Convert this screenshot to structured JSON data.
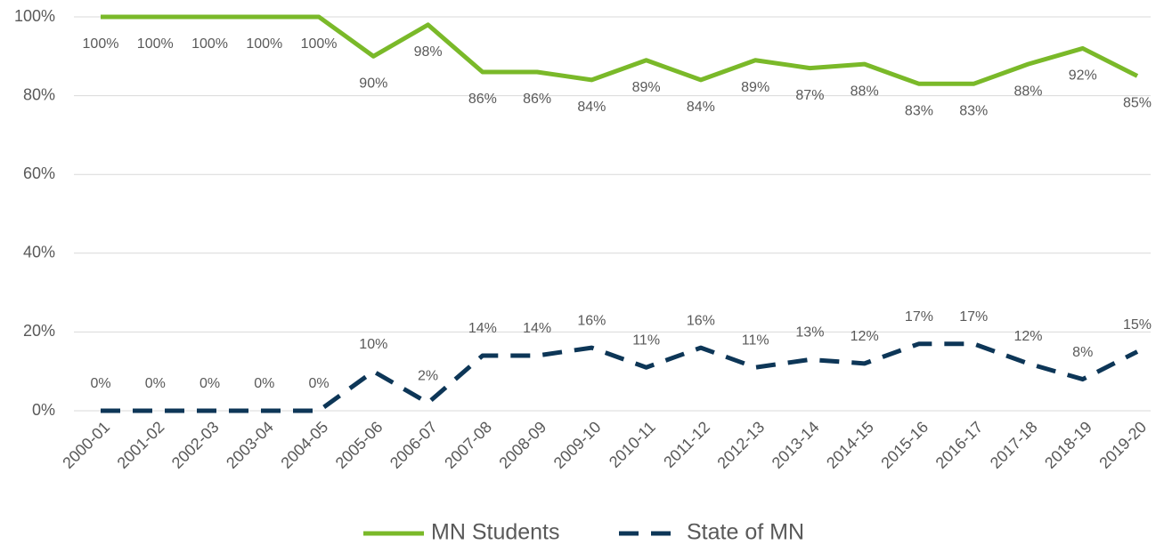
{
  "chart_data": {
    "type": "line",
    "categories": [
      "2000-01",
      "2001-02",
      "2002-03",
      "2003-04",
      "2004-05",
      "2005-06",
      "2006-07",
      "2007-08",
      "2008-09",
      "2009-10",
      "2010-11",
      "2011-12",
      "2012-13",
      "2013-14",
      "2014-15",
      "2015-16",
      "2016-17",
      "2017-18",
      "2018-19",
      "2019-20"
    ],
    "series": [
      {
        "name": "MN Students",
        "color": "#7ab929",
        "line_style": "solid",
        "label_position": "below",
        "values": [
          100,
          100,
          100,
          100,
          100,
          90,
          98,
          86,
          86,
          84,
          89,
          84,
          89,
          87,
          88,
          83,
          83,
          88,
          92,
          85
        ],
        "value_labels": [
          "100%",
          "100%",
          "100%",
          "100%",
          "100%",
          "90%",
          "98%",
          "86%",
          "86%",
          "84%",
          "89%",
          "84%",
          "89%",
          "87%",
          "88%",
          "83%",
          "83%",
          "88%",
          "92%",
          "85%"
        ]
      },
      {
        "name": "State of MN",
        "color": "#0d3657",
        "line_style": "dashed",
        "label_position": "above",
        "values": [
          0,
          0,
          0,
          0,
          0,
          10,
          2,
          14,
          14,
          16,
          11,
          16,
          11,
          13,
          12,
          17,
          17,
          12,
          8,
          15
        ],
        "value_labels": [
          "0%",
          "0%",
          "0%",
          "0%",
          "0%",
          "10%",
          "2%",
          "14%",
          "14%",
          "16%",
          "11%",
          "16%",
          "11%",
          "13%",
          "12%",
          "17%",
          "17%",
          "12%",
          "8%",
          "15%"
        ]
      }
    ],
    "ylim": [
      0,
      100
    ],
    "yticks": [
      {
        "value": 0,
        "label": "0%"
      },
      {
        "value": 20,
        "label": "20%"
      },
      {
        "value": 40,
        "label": "40%"
      },
      {
        "value": 60,
        "label": "60%"
      },
      {
        "value": 80,
        "label": "80%"
      },
      {
        "value": 100,
        "label": "100%"
      }
    ],
    "grid": true,
    "legend": "bottom"
  }
}
